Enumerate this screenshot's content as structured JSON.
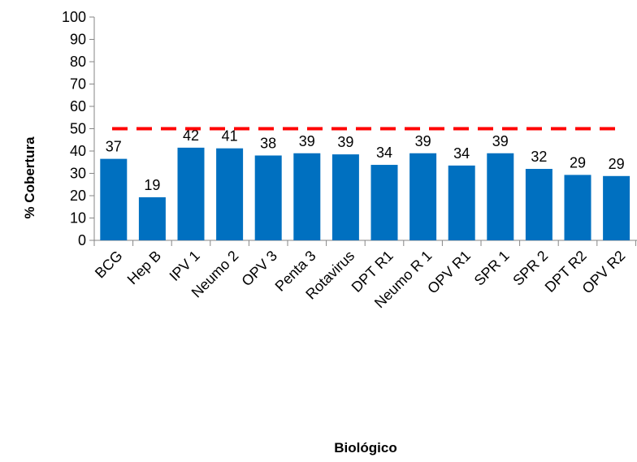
{
  "chart_data": {
    "type": "bar",
    "title": "",
    "xlabel": "Biológico",
    "ylabel": "% Cobertura",
    "ylim": [
      0,
      100
    ],
    "yticks": [
      0,
      10,
      20,
      30,
      40,
      50,
      60,
      70,
      80,
      90,
      100
    ],
    "categories": [
      "BCG",
      "Hep B",
      "IPV 1",
      "Neumo 2",
      "OPV 3",
      "Penta 3",
      "Rotavirus",
      "DPT R1",
      "Neumo R 1",
      "OPV R1",
      "SPR 1",
      "SPR 2",
      "DPT R2",
      "OPV R2"
    ],
    "values": [
      36.5,
      19.3,
      41.5,
      41.2,
      38.0,
      39.0,
      38.5,
      33.8,
      39.0,
      33.5,
      39.0,
      32.0,
      29.3,
      28.8
    ],
    "data_labels": [
      "37",
      "19",
      "42",
      "41",
      "38",
      "39",
      "39",
      "34",
      "39",
      "34",
      "39",
      "32",
      "29",
      "29"
    ],
    "reference_line": {
      "value": 50,
      "style": "dashed"
    },
    "grid": false,
    "legend": "none",
    "colors": {
      "bar": "#0070C0",
      "reference": "#FF0000",
      "axis": "#868686"
    }
  }
}
